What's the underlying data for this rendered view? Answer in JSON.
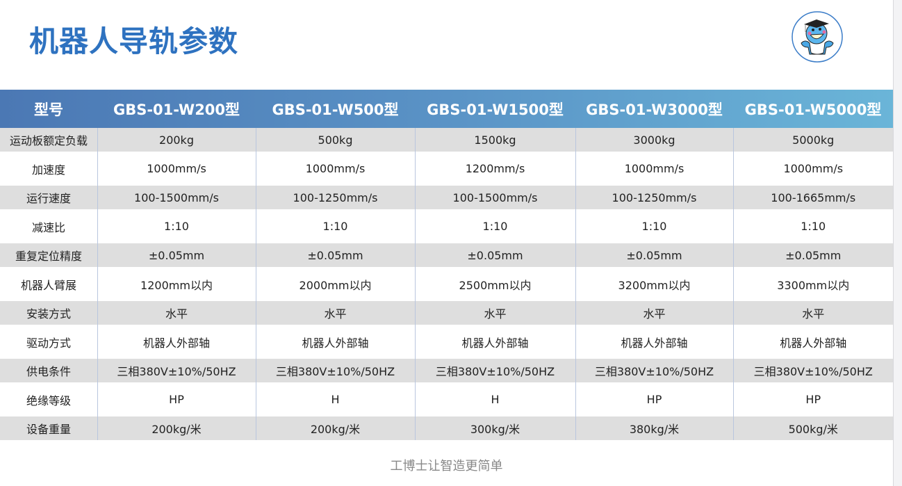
{
  "title": "机器人导轨参数",
  "logo": {
    "icon": "doctor-mascot-logo",
    "accent": "#2e72c0"
  },
  "table": {
    "header": [
      "型号",
      "GBS-01-W200型",
      "GBS-01-W500型",
      "GBS-01-W1500型",
      "GBS-01-W3000型",
      "GBS-01-W5000型"
    ],
    "rows": [
      [
        "运动板额定负载",
        "200kg",
        "500kg",
        "1500kg",
        "3000kg",
        "5000kg"
      ],
      [
        "加速度",
        "1000mm/s",
        "1000mm/s",
        "1200mm/s",
        "1000mm/s",
        "1000mm/s"
      ],
      [
        "运行速度",
        "100-1500mm/s",
        "100-1250mm/s",
        "100-1500mm/s",
        "100-1250mm/s",
        "100-1665mm/s"
      ],
      [
        "减速比",
        "1:10",
        "1:10",
        "1:10",
        "1:10",
        "1:10"
      ],
      [
        "重复定位精度",
        "±0.05mm",
        "±0.05mm",
        "±0.05mm",
        "±0.05mm",
        "±0.05mm"
      ],
      [
        "机器人臂展",
        "1200mm以内",
        "2000mm以内",
        "2500mm以内",
        "3200mm以内",
        "3300mm以内"
      ],
      [
        "安装方式",
        "水平",
        "水平",
        "水平",
        "水平",
        "水平"
      ],
      [
        "驱动方式",
        "机器人外部轴",
        "机器人外部轴",
        "机器人外部轴",
        "机器人外部轴",
        "机器人外部轴"
      ],
      [
        "供电条件",
        "三相380V±10%/50HZ",
        "三相380V±10%/50HZ",
        "三相380V±10%/50HZ",
        "三相380V±10%/50HZ",
        "三相380V±10%/50HZ"
      ],
      [
        "绝缘等级",
        "HP",
        "H",
        "H",
        "HP",
        "HP"
      ],
      [
        "设备重量",
        "200kg/米",
        "200kg/米",
        "300kg/米",
        "380kg/米",
        "500kg/米"
      ]
    ]
  },
  "footer": "工博士让智造更简单"
}
